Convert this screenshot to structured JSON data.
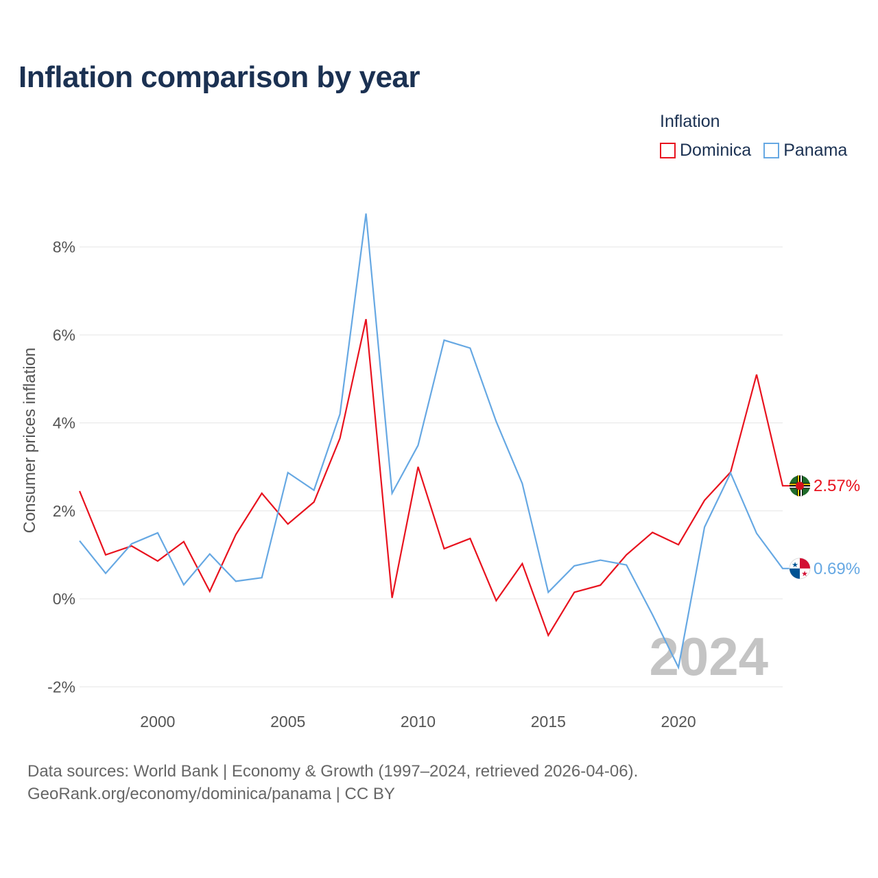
{
  "title": "Inflation comparison by year",
  "legend": {
    "title": "Inflation",
    "items": [
      {
        "label": "Dominica",
        "color": "#e8121e"
      },
      {
        "label": "Panama",
        "color": "#66a8e3"
      }
    ]
  },
  "footer": {
    "line1": "Data sources: World Bank | Economy & Growth (1997–2024, retrieved 2026-04-06).",
    "line2": "GeoRank.org/economy/dominica/panama | CC BY"
  },
  "chart_data": {
    "type": "line",
    "title": "Inflation comparison by year",
    "xlabel": "",
    "ylabel": "Consumer prices inflation",
    "xlim": [
      1997,
      2024
    ],
    "ylim": [
      -2,
      9
    ],
    "x_ticks": [
      2000,
      2005,
      2010,
      2015,
      2020
    ],
    "y_ticks": [
      -2,
      0,
      2,
      4,
      6,
      8
    ],
    "y_tick_labels": [
      "-2%",
      "0%",
      "2%",
      "4%",
      "6%",
      "8%"
    ],
    "grid": true,
    "current_year": "2024",
    "x": [
      1997,
      1998,
      1999,
      2000,
      2001,
      2002,
      2003,
      2004,
      2005,
      2006,
      2007,
      2008,
      2009,
      2010,
      2011,
      2012,
      2013,
      2014,
      2015,
      2016,
      2017,
      2018,
      2019,
      2020,
      2021,
      2022,
      2023,
      2024
    ],
    "series": [
      {
        "name": "Dominica",
        "color": "#e8121e",
        "end_label": "2.57%",
        "flag_icon": "dominica-flag-icon",
        "values": [
          2.45,
          1.0,
          1.2,
          0.86,
          1.3,
          0.17,
          1.46,
          2.4,
          1.7,
          2.2,
          3.65,
          6.36,
          0.02,
          3.0,
          1.14,
          1.37,
          -0.04,
          0.8,
          -0.83,
          0.15,
          0.31,
          1.0,
          1.51,
          1.23,
          2.24,
          2.88,
          5.1,
          2.57
        ]
      },
      {
        "name": "Panama",
        "color": "#66a8e3",
        "end_label": "0.69%",
        "flag_icon": "panama-flag-icon",
        "values": [
          1.32,
          0.58,
          1.25,
          1.5,
          0.32,
          1.02,
          0.4,
          0.48,
          2.87,
          2.47,
          4.2,
          8.76,
          2.4,
          3.49,
          5.88,
          5.7,
          4.03,
          2.62,
          0.15,
          0.75,
          0.88,
          0.77,
          -0.36,
          -1.56,
          1.63,
          2.86,
          1.49,
          0.69
        ]
      }
    ]
  }
}
